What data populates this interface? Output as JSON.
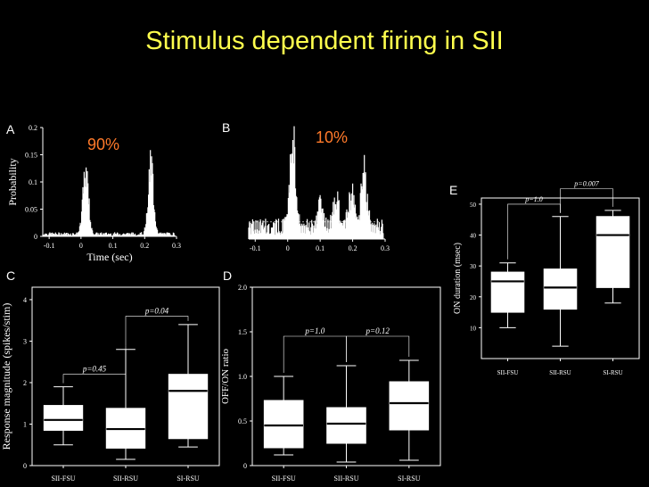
{
  "slide": {
    "title": "Stimulus dependent firing in SII",
    "title_color": "#ffff4d",
    "percent_color": "#ff7a2a"
  },
  "chart_data": [
    {
      "panel": "A",
      "type": "histogram",
      "annotation": "90%",
      "xlabel": "Time (sec)",
      "ylabel": "Probability",
      "xticks": [
        "-0.1",
        "0",
        "0.1",
        "0.2",
        "0.3"
      ],
      "yticks": [
        "0",
        "0.05",
        "0.1",
        "0.15",
        "0.2"
      ],
      "xlim": [
        -0.12,
        0.3
      ],
      "ylim": [
        0,
        0.2
      ],
      "peaks": [
        {
          "x": 0.015,
          "y": 0.14
        },
        {
          "x": 0.22,
          "y": 0.14
        }
      ],
      "baseline": 0.005
    },
    {
      "panel": "B",
      "type": "histogram",
      "annotation": "10%",
      "xlabel": "",
      "ylabel": "",
      "xticks": [
        "-0.1",
        "0",
        "0.1",
        "0.2",
        "0.3"
      ],
      "yticks": [],
      "xlim": [
        -0.12,
        0.3
      ],
      "ylim": [
        0,
        1
      ],
      "peaks": [
        {
          "x": 0.015,
          "y": 0.9
        },
        {
          "x": 0.1,
          "y": 0.25
        },
        {
          "x": 0.15,
          "y": 0.32
        },
        {
          "x": 0.195,
          "y": 0.38
        },
        {
          "x": 0.235,
          "y": 0.6
        }
      ],
      "baseline": 0.12,
      "threshold": 0.15
    },
    {
      "panel": "C",
      "type": "box",
      "ylabel": "Response magnitude (spikes/stim)",
      "ylim": [
        0,
        4.3
      ],
      "yticks": [
        "0",
        "1",
        "2",
        "3",
        "4"
      ],
      "categories": [
        "SII-FSU",
        "SII-RSU",
        "SI-RSU"
      ],
      "boxes": [
        {
          "min": 0.5,
          "q1": 0.85,
          "median": 1.1,
          "q3": 1.45,
          "max": 1.9
        },
        {
          "min": 0.15,
          "q1": 0.42,
          "median": 0.88,
          "q3": 1.38,
          "max": 2.8
        },
        {
          "min": 0.45,
          "q1": 0.65,
          "median": 1.8,
          "q3": 2.2,
          "max": 3.4
        }
      ],
      "pvalues": [
        {
          "pair": [
            0,
            1
          ],
          "label": "p=0.45",
          "level": 2.2
        },
        {
          "pair": [
            1,
            2
          ],
          "label": "p=0.04",
          "level": 3.6
        }
      ]
    },
    {
      "panel": "D",
      "type": "box",
      "ylabel": "OFF/ON ratio",
      "ylim": [
        0,
        2.0
      ],
      "yticks": [
        "0",
        "0.5",
        "1.0",
        "1.5",
        "2.0"
      ],
      "categories": [
        "SII-FSU",
        "SII-RSU",
        "SI-RSU"
      ],
      "boxes": [
        {
          "min": 0.12,
          "q1": 0.2,
          "median": 0.45,
          "q3": 0.73,
          "max": 1.0
        },
        {
          "min": 0.04,
          "q1": 0.25,
          "median": 0.47,
          "q3": 0.65,
          "max": 1.12
        },
        {
          "min": 0.06,
          "q1": 0.4,
          "median": 0.7,
          "q3": 0.94,
          "max": 1.18
        }
      ],
      "pvalues": [
        {
          "pair": [
            0,
            1
          ],
          "label": "p=1.0",
          "level": 1.45
        },
        {
          "pair": [
            1,
            2
          ],
          "label": "p=0.12",
          "level": 1.45
        }
      ]
    },
    {
      "panel": "E",
      "type": "box",
      "ylabel": "ON duration (msec)",
      "ylim": [
        0,
        52
      ],
      "yticks": [
        "10",
        "20",
        "30",
        "40",
        "50"
      ],
      "categories": [
        "SII-FSU",
        "SII-RSU",
        "SI-RSU"
      ],
      "boxes": [
        {
          "min": 10,
          "q1": 15,
          "median": 25,
          "q3": 28,
          "max": 31
        },
        {
          "min": 4,
          "q1": 16,
          "median": 23,
          "q3": 29,
          "max": 46
        },
        {
          "min": 18,
          "q1": 23,
          "median": 40,
          "q3": 46,
          "max": 48
        }
      ],
      "pvalues": [
        {
          "pair": [
            0,
            1
          ],
          "label": "p=1.0",
          "level": 50
        },
        {
          "pair": [
            1,
            2
          ],
          "label": "p=0.007",
          "level": 55
        }
      ]
    }
  ]
}
